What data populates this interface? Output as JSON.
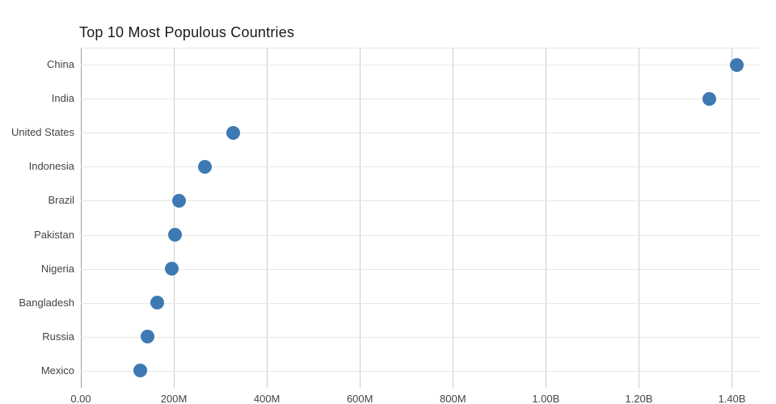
{
  "chart_data": {
    "type": "scatter",
    "orientation": "horizontal",
    "title": "Top 10 Most Populous Countries",
    "categories": [
      "China",
      "India",
      "United States",
      "Indonesia",
      "Brazil",
      "Pakistan",
      "Nigeria",
      "Bangladesh",
      "Russia",
      "Mexico"
    ],
    "values": [
      1410000000,
      1352000000,
      327000000,
      267000000,
      211000000,
      203000000,
      195000000,
      165000000,
      144000000,
      128000000
    ],
    "x_ticks": [
      {
        "value": 0,
        "label": "0.00"
      },
      {
        "value": 200000000,
        "label": "200M"
      },
      {
        "value": 400000000,
        "label": "400M"
      },
      {
        "value": 600000000,
        "label": "600M"
      },
      {
        "value": 800000000,
        "label": "800M"
      },
      {
        "value": 1000000000,
        "label": "1.00B"
      },
      {
        "value": 1200000000,
        "label": "1.20B"
      },
      {
        "value": 1400000000,
        "label": "1.40B"
      }
    ],
    "xlim": [
      0,
      1460000000
    ],
    "xlabel": "",
    "ylabel": "",
    "grid": true,
    "legend_position": "none",
    "dot_color": "#3d79b3",
    "grid_color": "#cccccc",
    "row_grid_color": "#e6e6e6",
    "label_color": "#444444"
  }
}
